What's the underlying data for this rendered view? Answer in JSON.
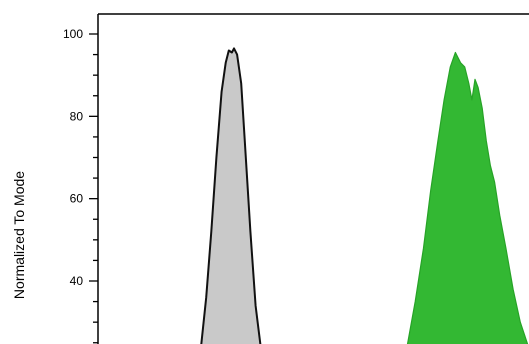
{
  "chart_data": {
    "type": "area",
    "ylabel": "Normalized To Mode",
    "xlabel": "",
    "ylim": [
      40,
      100
    ],
    "yticks": [
      40,
      60,
      80,
      100
    ],
    "ytick_labels": [
      "40",
      "60",
      "80",
      "100"
    ],
    "grid": false,
    "series": [
      {
        "fill": "#c9c9c9",
        "stroke": "#111111",
        "points": [
          [
            1.0,
            24
          ],
          [
            1.05,
            36
          ],
          [
            1.1,
            52
          ],
          [
            1.15,
            70
          ],
          [
            1.2,
            86
          ],
          [
            1.24,
            93
          ],
          [
            1.27,
            96
          ],
          [
            1.3,
            95.5
          ],
          [
            1.32,
            96.5
          ],
          [
            1.35,
            95
          ],
          [
            1.39,
            88
          ],
          [
            1.43,
            72
          ],
          [
            1.48,
            52
          ],
          [
            1.53,
            34
          ],
          [
            1.58,
            24
          ]
        ]
      },
      {
        "fill": "#33b833",
        "stroke": "#27a327",
        "points": [
          [
            3.0,
            24
          ],
          [
            3.08,
            35
          ],
          [
            3.16,
            48
          ],
          [
            3.23,
            62
          ],
          [
            3.3,
            74
          ],
          [
            3.36,
            84
          ],
          [
            3.42,
            92
          ],
          [
            3.47,
            95.5
          ],
          [
            3.52,
            93
          ],
          [
            3.56,
            92
          ],
          [
            3.6,
            88
          ],
          [
            3.63,
            84
          ],
          [
            3.66,
            89
          ],
          [
            3.69,
            87
          ],
          [
            3.73,
            82
          ],
          [
            3.77,
            74
          ],
          [
            3.81,
            68
          ],
          [
            3.85,
            64
          ],
          [
            3.9,
            56
          ],
          [
            3.96,
            48
          ],
          [
            4.03,
            38
          ],
          [
            4.1,
            30
          ],
          [
            4.18,
            24
          ]
        ]
      }
    ]
  }
}
